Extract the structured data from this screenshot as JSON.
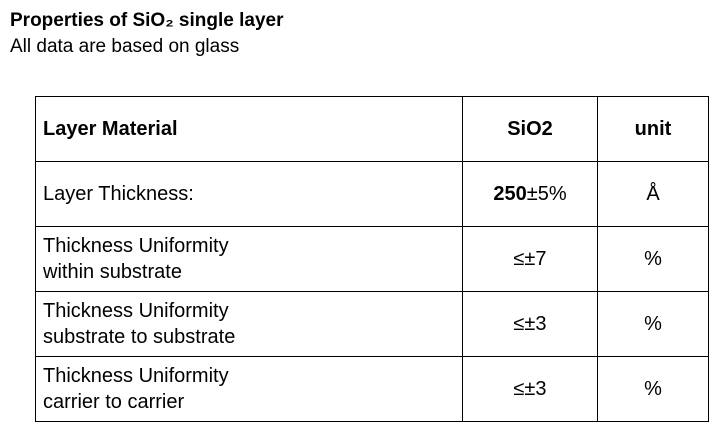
{
  "header": {
    "title": "Properties of SiO₂ single layer",
    "subtitle": "All data are based on glass"
  },
  "table": {
    "columns": [
      "Layer Material",
      "SiO2",
      "unit"
    ],
    "rows": [
      {
        "property": "Layer Thickness:",
        "value_main": "250",
        "value_rest": "±5%",
        "unit": "Å"
      },
      {
        "property": "Thickness Uniformity\nwithin substrate",
        "value_rest": "≤±7",
        "unit": "%"
      },
      {
        "property": "Thickness Uniformity\nsubstrate to substrate",
        "value_rest": "≤±3",
        "unit": "%"
      },
      {
        "property": "Thickness Uniformity\ncarrier to carrier",
        "value_rest": "≤±3",
        "unit": "%"
      }
    ]
  }
}
